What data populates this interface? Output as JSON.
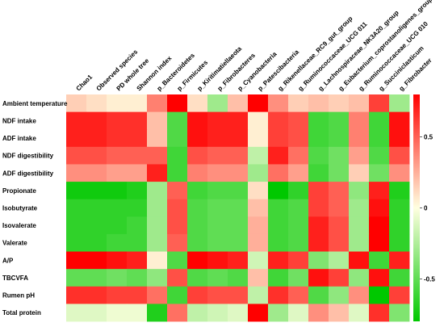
{
  "chart_data": {
    "type": "heatmap",
    "title": "",
    "xlabel": "",
    "ylabel": "",
    "columns": [
      "Chao1",
      "Observed species",
      "PD whole tree",
      "Shannon index",
      "p_Bacteroidetes",
      "p_Firmicutes",
      "p_Kiritimatiellaeota",
      "p_Fibrobacteres",
      "p_Cyanobacteria",
      "p_Patescibacteria",
      "g_Rikenellaceae_RC9_gut_group",
      "g_Ruminococcaceae_UCG 011",
      "g_Lachnospiraceae_NK3A20_group",
      "g_Eubacterium_coprostanoligenes_group",
      "g_Ruminococcaceae_UCG 010",
      "g_Succiniclasticum",
      "g_Fibrobacter"
    ],
    "rows": [
      "Ambient temperature",
      "NDF intake",
      "ADF intake",
      "NDF digestibility",
      "ADF digestibility",
      "Propionate",
      "Isobutyrate",
      "Isovalerate",
      "Valerate",
      "A/P",
      "TBCVFA",
      "Rumen pH",
      "Total protein"
    ],
    "values": [
      [
        0.15,
        0.1,
        0.05,
        0.05,
        0.4,
        0.8,
        0.1,
        -0.3,
        0.2,
        0.8,
        0.35,
        0.15,
        0.2,
        0.15,
        0.2,
        0.6,
        -0.3
      ],
      [
        0.7,
        0.7,
        0.65,
        0.65,
        0.2,
        -0.55,
        0.75,
        0.7,
        0.7,
        0.05,
        0.6,
        0.55,
        -0.6,
        -0.55,
        0.4,
        -0.6,
        0.75
      ],
      [
        0.7,
        0.7,
        0.65,
        0.65,
        0.2,
        -0.55,
        0.75,
        0.7,
        0.7,
        0.05,
        0.6,
        0.55,
        -0.6,
        -0.55,
        0.4,
        -0.6,
        0.75
      ],
      [
        0.55,
        0.55,
        0.5,
        0.5,
        0.5,
        -0.6,
        0.55,
        0.5,
        0.5,
        -0.2,
        0.7,
        0.45,
        -0.55,
        -0.45,
        0.3,
        -0.55,
        0.55
      ],
      [
        0.35,
        0.35,
        0.3,
        0.3,
        0.7,
        -0.6,
        0.4,
        0.35,
        0.35,
        -0.3,
        0.45,
        0.3,
        -0.6,
        -0.45,
        0.15,
        -0.45,
        0.35
      ],
      [
        -0.75,
        -0.75,
        -0.75,
        -0.7,
        -0.3,
        0.5,
        -0.6,
        -0.55,
        -0.55,
        0.1,
        -0.8,
        -0.65,
        0.6,
        0.5,
        -0.35,
        0.7,
        -0.7
      ],
      [
        -0.65,
        -0.65,
        -0.65,
        -0.65,
        -0.3,
        0.55,
        -0.55,
        -0.5,
        -0.5,
        0.2,
        -0.6,
        -0.55,
        0.6,
        0.5,
        -0.3,
        0.75,
        -0.65
      ],
      [
        -0.65,
        -0.65,
        -0.65,
        -0.6,
        -0.3,
        0.55,
        -0.55,
        -0.5,
        -0.5,
        0.25,
        -0.6,
        -0.55,
        0.7,
        0.55,
        -0.3,
        0.8,
        -0.65
      ],
      [
        -0.65,
        -0.65,
        -0.6,
        -0.6,
        -0.3,
        0.5,
        -0.55,
        -0.5,
        -0.5,
        0.25,
        -0.6,
        -0.55,
        0.7,
        0.55,
        -0.3,
        0.85,
        -0.65
      ],
      [
        0.8,
        0.8,
        0.75,
        0.7,
        0.05,
        -0.55,
        0.8,
        0.75,
        0.7,
        -0.15,
        0.7,
        0.6,
        -0.4,
        -0.25,
        0.75,
        -0.6,
        0.7
      ],
      [
        -0.5,
        -0.5,
        -0.45,
        -0.5,
        -0.35,
        0.55,
        -0.55,
        -0.5,
        -0.55,
        0.2,
        -0.6,
        -0.45,
        0.75,
        0.6,
        -0.35,
        0.75,
        -0.6
      ],
      [
        0.65,
        0.65,
        0.6,
        0.6,
        0.45,
        -0.6,
        0.6,
        0.55,
        0.55,
        -0.2,
        0.65,
        0.5,
        -0.55,
        -0.35,
        0.35,
        -0.8,
        0.6
      ],
      [
        -0.1,
        -0.1,
        -0.05,
        -0.05,
        -0.7,
        0.45,
        -0.2,
        -0.15,
        -0.1,
        0.85,
        -0.3,
        -0.1,
        0.35,
        0.2,
        -0.1,
        0.65,
        -0.4
      ]
    ],
    "colorbar": {
      "ticks": [
        0.5,
        0,
        -0.5
      ],
      "tick_labels": [
        "0.5",
        "0",
        "-0.5"
      ],
      "range": [
        -0.8,
        0.8
      ],
      "low_color": "#00c800",
      "mid_color": "#ffffe0",
      "high_color": "#ff0000"
    }
  }
}
